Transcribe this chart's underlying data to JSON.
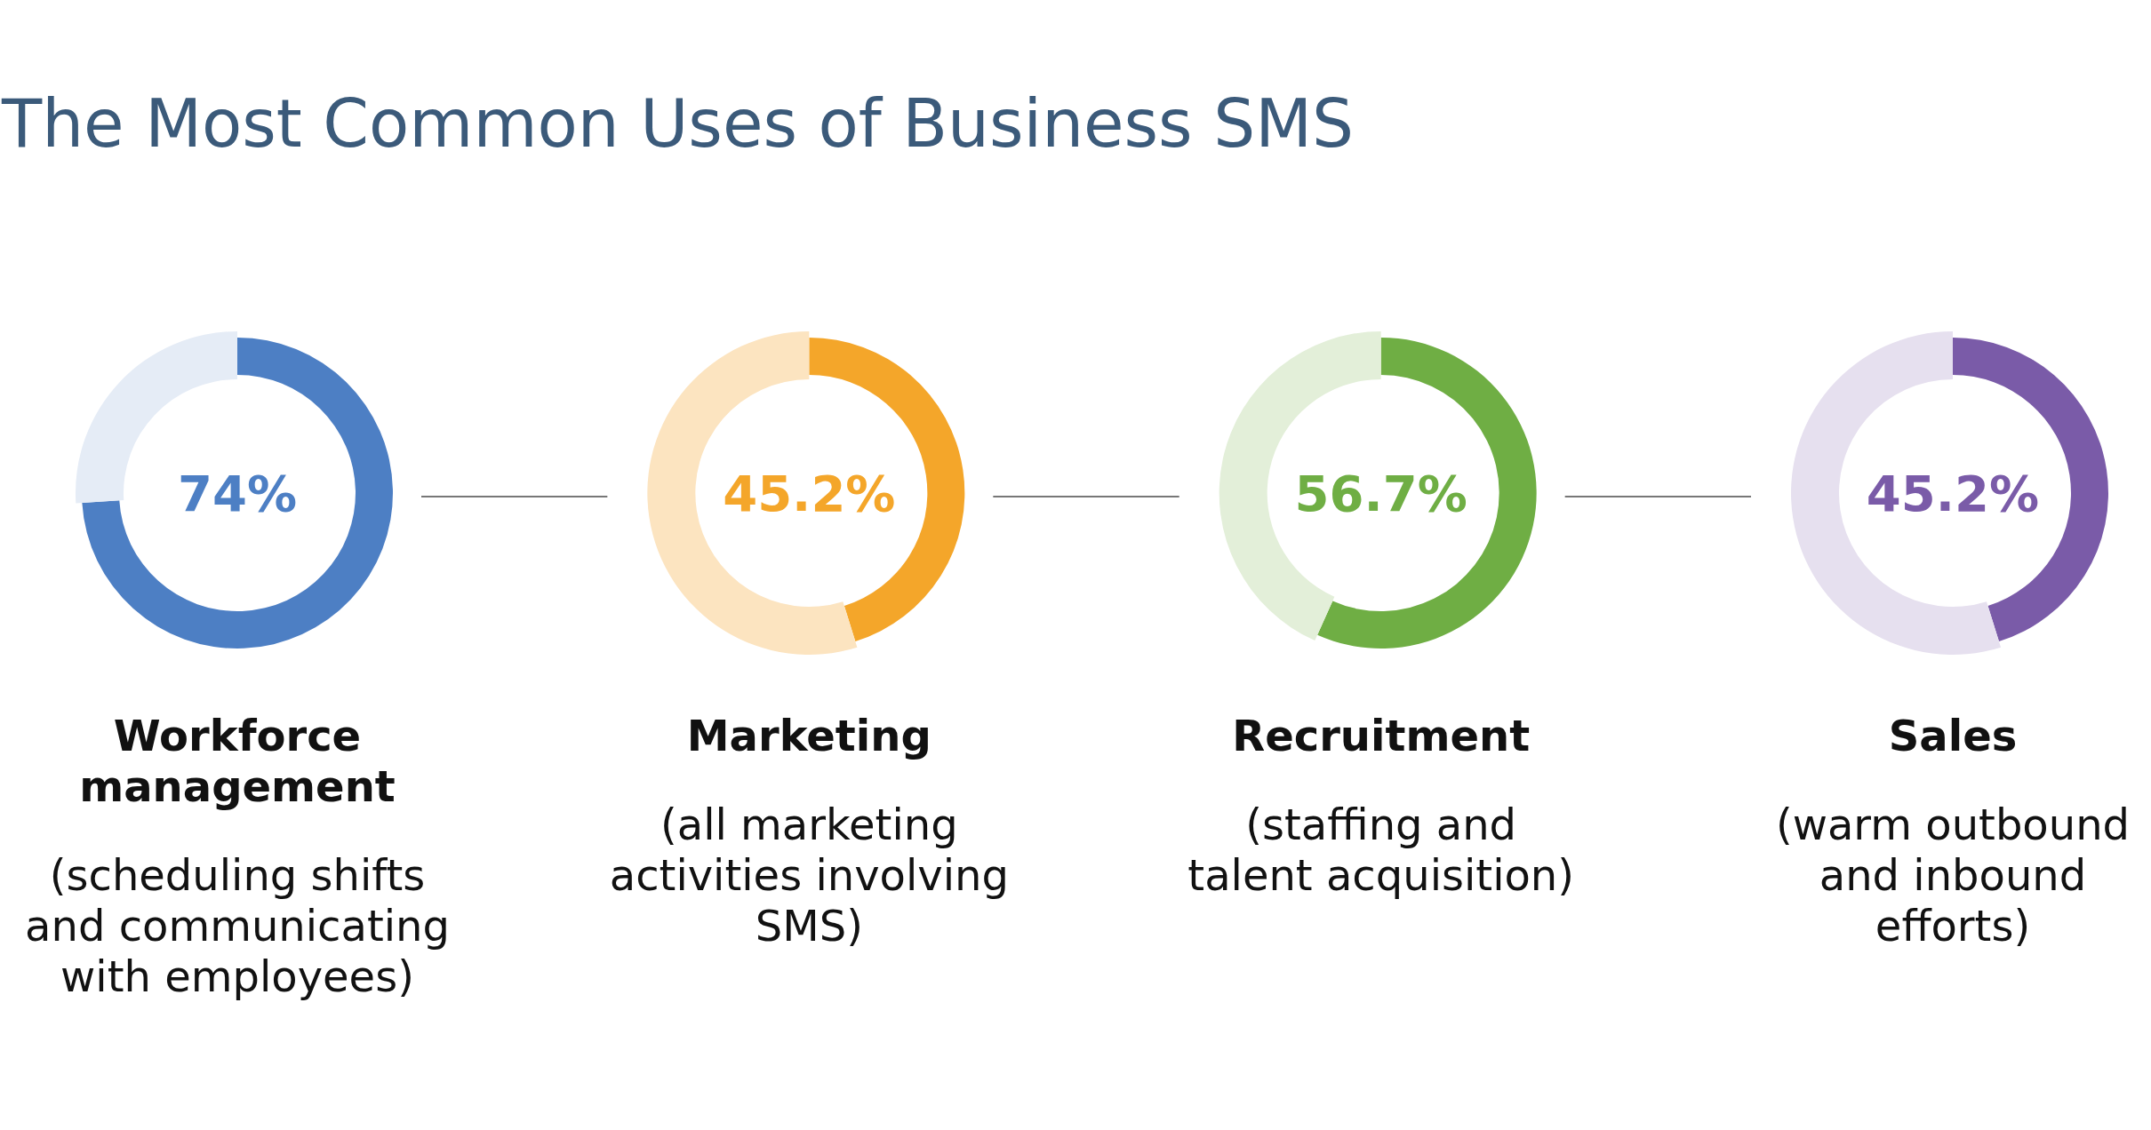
{
  "chart_data": [
    {
      "type": "donut",
      "title": "The Most Common Uses of Business SMS",
      "categories": [
        null,
        null
      ],
      "values": [
        74,
        26
      ],
      "colors": [
        "#4d7fc4",
        "#e5ecf6"
      ],
      "annotations": [
        "74%"
      ],
      "xlabel": "Workforce\nmanagement",
      "subtitle": "(scheduling shifts\nand communicating\nwith employees)"
    },
    {
      "type": "donut",
      "categories": [
        null,
        null
      ],
      "values": [
        45.2,
        54.8
      ],
      "colors": [
        "#f4a62a",
        "#fce4c0"
      ],
      "annotations": [
        "45.2%"
      ],
      "xlabel": "Marketing",
      "subtitle": "(all marketing\nactivities involving\nSMS)"
    },
    {
      "type": "donut",
      "categories": [
        null,
        null
      ],
      "values": [
        56.7,
        43.3
      ],
      "colors": [
        "#6fae44",
        "#e3efd9"
      ],
      "annotations": [
        "56.7%"
      ],
      "xlabel": "Recruitment",
      "subtitle": "(staffing and\ntalent acquisition)"
    },
    {
      "type": "donut",
      "categories": [
        null,
        null
      ],
      "values": [
        45.2,
        54.8
      ],
      "colors": [
        "#7a5ba8",
        "#e6e0ef"
      ],
      "annotations": [
        "45.2%"
      ],
      "xlabel": "Sales",
      "subtitle": "(warm outbound\nand inbound\nefforts)"
    }
  ]
}
